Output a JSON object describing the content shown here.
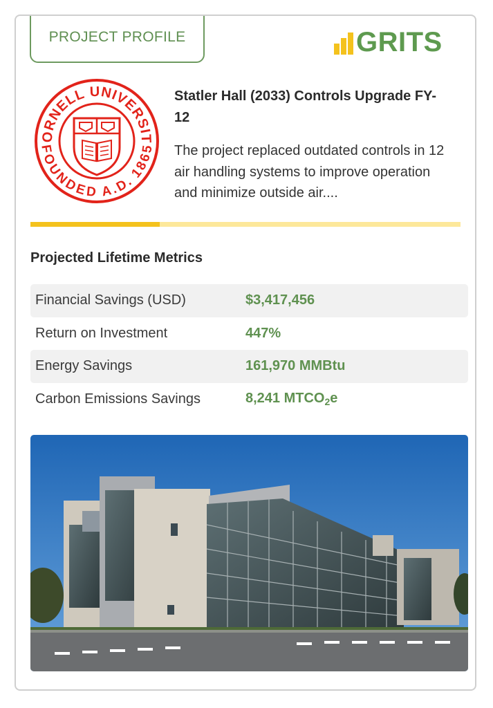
{
  "header": {
    "tab_label": "PROJECT PROFILE",
    "brand_name": "GRITS",
    "brand_colors": {
      "bars": "#f4c21d",
      "text": "#5e9a4f"
    }
  },
  "project": {
    "logo": {
      "icon": "cornell-university-seal-icon",
      "text_top": "CORNELL UNIVERSITY",
      "text_bottom": "FOUNDED A.D. 1865",
      "color": "#e2231a"
    },
    "title": "Statler Hall (2033) Controls Upgrade FY-12",
    "description": "The project replaced outdated controls in 12 air handling systems to improve operation and minimize outside air...."
  },
  "progress": {
    "fraction": 0.3,
    "fill_color": "#f4c21d",
    "track_color": "#fde89a"
  },
  "metrics": {
    "heading": "Projected Lifetime Metrics",
    "rows": [
      {
        "label": "Financial Savings (USD)",
        "value": "$3,417,456"
      },
      {
        "label": "Return on Investment",
        "value": "447%"
      },
      {
        "label": "Energy Savings",
        "value": "161,970 MMBtu"
      },
      {
        "label": "Carbon Emissions Savings",
        "value_main": "8,241 MTCO",
        "value_sub": "2",
        "value_suffix": "e"
      }
    ],
    "value_color": "#5f9150"
  },
  "photo": {
    "icon": "statler-hall-building-photo"
  }
}
